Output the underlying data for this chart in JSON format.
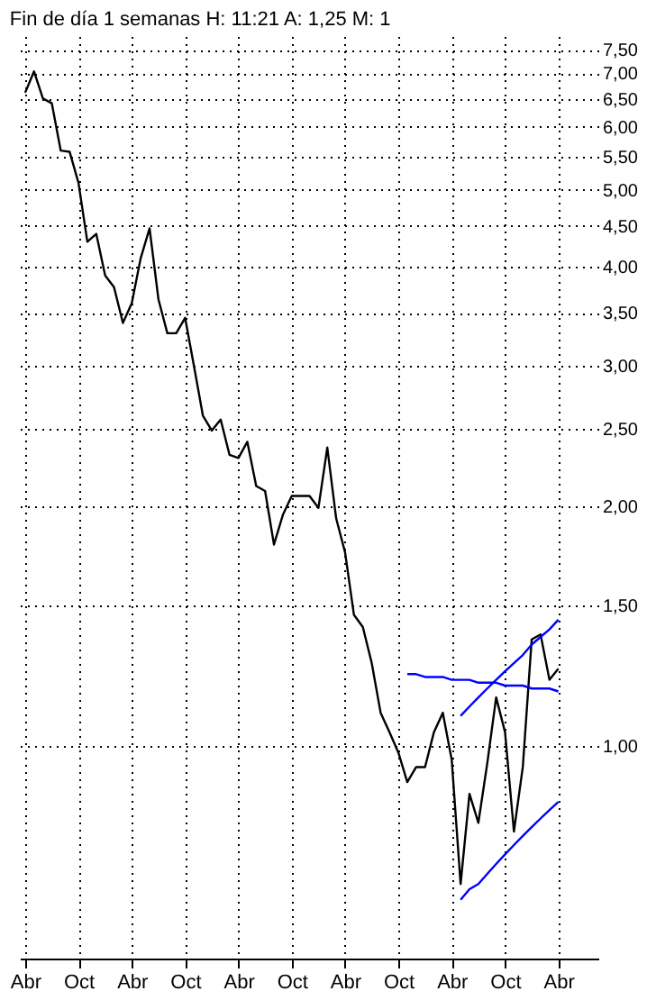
{
  "chart_data": {
    "type": "line",
    "title": "Fin de día 1 semanas  H: 11:21  A: 1,25  M: 1",
    "log": true,
    "grid": true,
    "legend": false,
    "categories": [
      "Abr",
      null,
      null,
      null,
      null,
      null,
      "Oct",
      null,
      null,
      null,
      null,
      null,
      "Abr",
      null,
      null,
      null,
      null,
      null,
      "Oct",
      null,
      null,
      null,
      null,
      null,
      "Abr",
      null,
      null,
      null,
      null,
      null,
      "Oct",
      null,
      null,
      null,
      null,
      null,
      "Abr",
      null,
      null,
      null,
      null,
      null,
      "Oct",
      null,
      null,
      null,
      null,
      null,
      "Abr",
      null,
      null,
      null,
      null,
      null,
      "Oct",
      null,
      null,
      null,
      null,
      null,
      "Abr",
      null,
      null,
      null,
      null
    ],
    "ylim": [
      0.54,
      7.8
    ],
    "yticks": [
      {
        "value": 1,
        "label": "1,00"
      },
      {
        "value": 1.5,
        "label": "1,50"
      },
      {
        "value": 2,
        "label": "2,00"
      },
      {
        "value": 2.5,
        "label": "2,50"
      },
      {
        "value": 3,
        "label": "3,00"
      },
      {
        "value": 3.5,
        "label": "3,50"
      },
      {
        "value": 4,
        "label": "4,00"
      },
      {
        "value": 4.5,
        "label": "4,50"
      },
      {
        "value": 5,
        "label": "5,00"
      },
      {
        "value": 5.5,
        "label": "5,50"
      },
      {
        "value": 6,
        "label": "6,00"
      },
      {
        "value": 6.5,
        "label": "6,50"
      },
      {
        "value": 7,
        "label": "7,00"
      },
      {
        "value": 7.5,
        "label": "7,50"
      }
    ],
    "line_style": "solid",
    "series": [
      {
        "color": "#000000",
        "values": [
          6.62,
          7.04,
          6.51,
          6.42,
          5.6,
          5.58,
          5.1,
          4.3,
          4.4,
          3.9,
          3.77,
          3.4,
          3.6,
          4.1,
          4.47,
          3.64,
          3.3,
          3.3,
          3.45,
          3.0,
          2.6,
          2.49,
          2.57,
          2.32,
          2.3,
          2.41,
          2.12,
          2.09,
          1.79,
          1.95,
          2.06,
          2.06,
          2.06,
          1.99,
          2.37,
          1.93,
          1.75,
          1.46,
          1.41,
          1.27,
          1.1,
          1.04,
          0.98,
          0.9,
          0.94,
          0.94,
          1.04,
          1.1,
          0.96,
          0.67,
          0.87,
          0.8,
          0.95,
          1.15,
          1.04,
          0.78,
          0.94,
          1.36,
          1.38,
          1.21,
          1.25,
          null,
          null,
          null,
          null
        ]
      },
      {
        "type": "line",
        "color": "#0000ff",
        "values": [
          null,
          null,
          null,
          null,
          null,
          null,
          null,
          null,
          null,
          null,
          null,
          null,
          null,
          null,
          null,
          null,
          null,
          null,
          null,
          null,
          null,
          null,
          null,
          null,
          null,
          null,
          null,
          null,
          null,
          null,
          null,
          null,
          null,
          null,
          null,
          null,
          null,
          null,
          null,
          null,
          null,
          null,
          null,
          1.23,
          1.23,
          1.22,
          1.22,
          1.22,
          1.21,
          1.21,
          1.21,
          1.2,
          1.2,
          1.2,
          1.19,
          1.19,
          1.19,
          1.18,
          1.18,
          1.18,
          1.17,
          null,
          null,
          null,
          null
        ]
      },
      {
        "type": "line",
        "color": "#0000ff",
        "values": [
          null,
          null,
          null,
          null,
          null,
          null,
          null,
          null,
          null,
          null,
          null,
          null,
          null,
          null,
          null,
          null,
          null,
          null,
          null,
          null,
          null,
          null,
          null,
          null,
          null,
          null,
          null,
          null,
          null,
          null,
          null,
          null,
          null,
          null,
          null,
          null,
          null,
          null,
          null,
          null,
          null,
          null,
          null,
          null,
          null,
          null,
          null,
          null,
          null,
          1.09,
          1.12,
          1.15,
          1.18,
          1.21,
          1.24,
          1.27,
          1.3,
          1.34,
          1.37,
          1.4,
          1.44,
          null,
          null,
          null,
          null
        ]
      },
      {
        "type": "line",
        "color": "#0000ff",
        "values": [
          null,
          null,
          null,
          null,
          null,
          null,
          null,
          null,
          null,
          null,
          null,
          null,
          null,
          null,
          null,
          null,
          null,
          null,
          null,
          null,
          null,
          null,
          null,
          null,
          null,
          null,
          null,
          null,
          null,
          null,
          null,
          null,
          null,
          null,
          null,
          null,
          null,
          null,
          null,
          null,
          null,
          null,
          null,
          null,
          null,
          null,
          null,
          null,
          null,
          0.64,
          0.66,
          0.67,
          0.69,
          0.71,
          0.73,
          0.75,
          0.77,
          0.79,
          0.81,
          0.83,
          0.85,
          null,
          null,
          null,
          null
        ]
      }
    ]
  }
}
